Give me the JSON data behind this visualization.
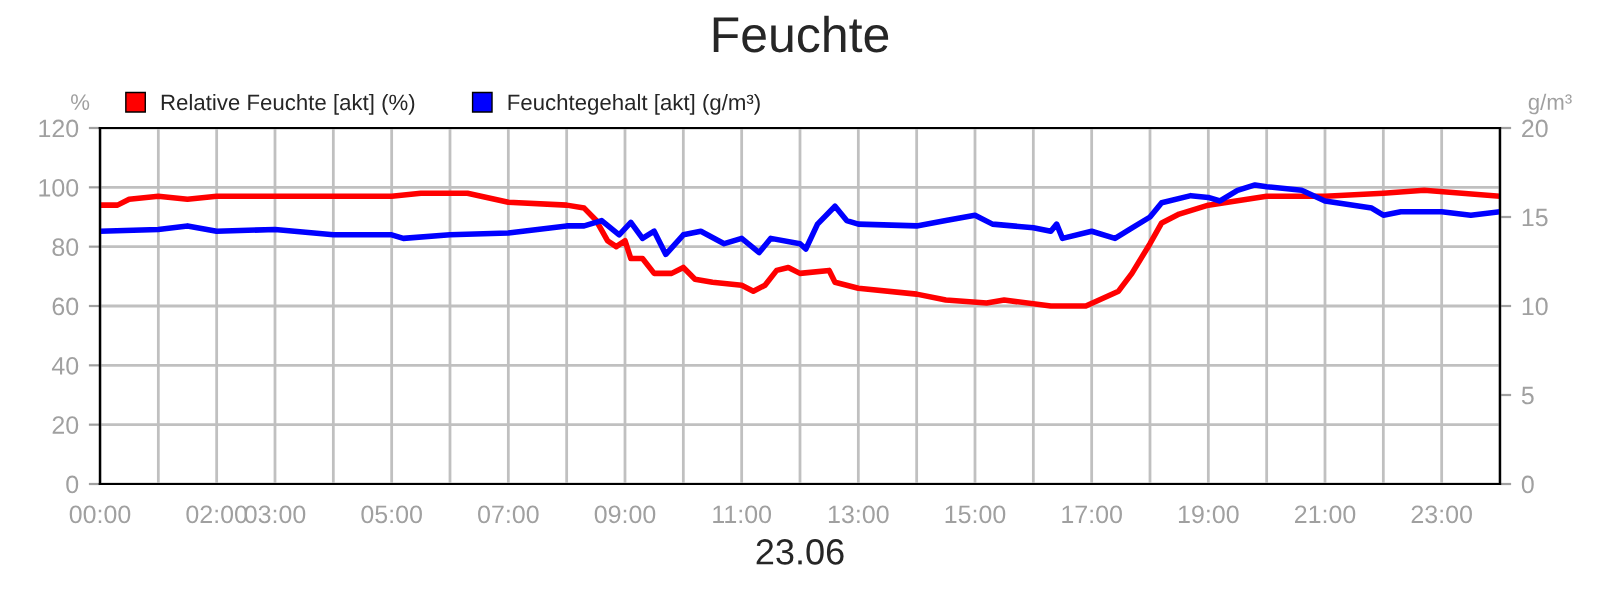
{
  "chart_data": {
    "type": "line",
    "title": "Feuchte",
    "xlabel": "23.06",
    "ylabel": "%",
    "y2label": "g/m³",
    "xlim": [
      0,
      24
    ],
    "xticks": [
      {
        "value": 0,
        "label": "00:00"
      },
      {
        "value": 1,
        "label": null
      },
      {
        "value": 2,
        "label": "02:00"
      },
      {
        "value": 3,
        "label": "03:00"
      },
      {
        "value": 4,
        "label": null
      },
      {
        "value": 5,
        "label": "05:00"
      },
      {
        "value": 6,
        "label": null
      },
      {
        "value": 7,
        "label": "07:00"
      },
      {
        "value": 8,
        "label": null
      },
      {
        "value": 9,
        "label": "09:00"
      },
      {
        "value": 10,
        "label": null
      },
      {
        "value": 11,
        "label": "11:00"
      },
      {
        "value": 12,
        "label": null
      },
      {
        "value": 13,
        "label": "13:00"
      },
      {
        "value": 14,
        "label": null
      },
      {
        "value": 15,
        "label": "15:00"
      },
      {
        "value": 16,
        "label": null
      },
      {
        "value": 17,
        "label": "17:00"
      },
      {
        "value": 18,
        "label": null
      },
      {
        "value": 19,
        "label": "19:00"
      },
      {
        "value": 20,
        "label": null
      },
      {
        "value": 21,
        "label": "21:00"
      },
      {
        "value": 22,
        "label": null
      },
      {
        "value": 23,
        "label": "23:00"
      },
      {
        "value": 24,
        "label": null
      }
    ],
    "ylim": [
      0,
      120
    ],
    "yticks": [
      0,
      20,
      40,
      60,
      80,
      100,
      120
    ],
    "y2lim": [
      0,
      20
    ],
    "y2ticks": [
      0,
      5,
      10,
      15,
      20
    ],
    "grid": true,
    "legend": "top left",
    "marker": "none",
    "line_style": "solid",
    "series": [
      {
        "name": "Relative Feuchte [akt] (%)",
        "color": "#ff0000",
        "x": [
          0,
          0.3,
          0.5,
          1,
          1.5,
          2,
          3,
          4,
          5,
          5.5,
          6,
          6.3,
          7,
          8,
          8.3,
          8.5,
          8.7,
          8.85,
          9,
          9.1,
          9.3,
          9.5,
          9.8,
          10,
          10.2,
          10.5,
          11,
          11.2,
          11.4,
          11.6,
          11.8,
          12,
          12.5,
          12.6,
          13,
          14,
          14.5,
          15.2,
          15.5,
          16.3,
          16.9,
          17.46,
          17.69,
          18,
          18.2,
          18.5,
          19,
          20,
          21,
          22,
          22.7,
          24
        ],
        "values": [
          94,
          94,
          96,
          97,
          96,
          97,
          97,
          97,
          97,
          98,
          98,
          98,
          95,
          94,
          93,
          89,
          82,
          80,
          82,
          76,
          76,
          71,
          71,
          73,
          69,
          68,
          67,
          65,
          67,
          72,
          73,
          71,
          72,
          68,
          66,
          64,
          62,
          61,
          62,
          60,
          60,
          65,
          71,
          81,
          88,
          91,
          94,
          97,
          97,
          98,
          99,
          97
        ]
      },
      {
        "name": "Feuchtegehalt [akt] (g/m³)",
        "color": "#0000ff",
        "axis": "y2",
        "x": [
          0,
          1,
          1.5,
          2,
          3,
          4,
          5,
          5.2,
          6,
          7,
          7.5,
          8,
          8.3,
          8.6,
          8.9,
          9.1,
          9.3,
          9.5,
          9.7,
          10,
          10.3,
          10.7,
          11,
          11.3,
          11.5,
          12,
          12.1,
          12.3,
          12.6,
          12.8,
          13,
          14,
          14.5,
          15,
          15.3,
          16,
          16.3,
          16.4,
          16.5,
          17,
          17.4,
          17.7,
          18,
          18.2,
          18.7,
          19,
          19.2,
          19.5,
          19.8,
          20,
          20.6,
          21,
          21.8,
          22,
          22.3,
          23,
          23.5,
          24
        ],
        "values": [
          14.2,
          14.3,
          14.5,
          14.2,
          14.3,
          14.0,
          14.0,
          13.8,
          14.0,
          14.1,
          14.3,
          14.5,
          14.5,
          14.8,
          14.0,
          14.7,
          13.8,
          14.2,
          12.9,
          14.0,
          14.2,
          13.5,
          13.8,
          13.0,
          13.8,
          13.5,
          13.2,
          14.6,
          15.6,
          14.8,
          14.6,
          14.5,
          14.8,
          15.1,
          14.6,
          14.4,
          14.2,
          14.6,
          13.8,
          14.2,
          13.8,
          14.4,
          15.0,
          15.8,
          16.2,
          16.1,
          15.9,
          16.5,
          16.8,
          16.7,
          16.5,
          15.9,
          15.5,
          15.1,
          15.3,
          15.3,
          15.1,
          15.3
        ]
      }
    ]
  }
}
